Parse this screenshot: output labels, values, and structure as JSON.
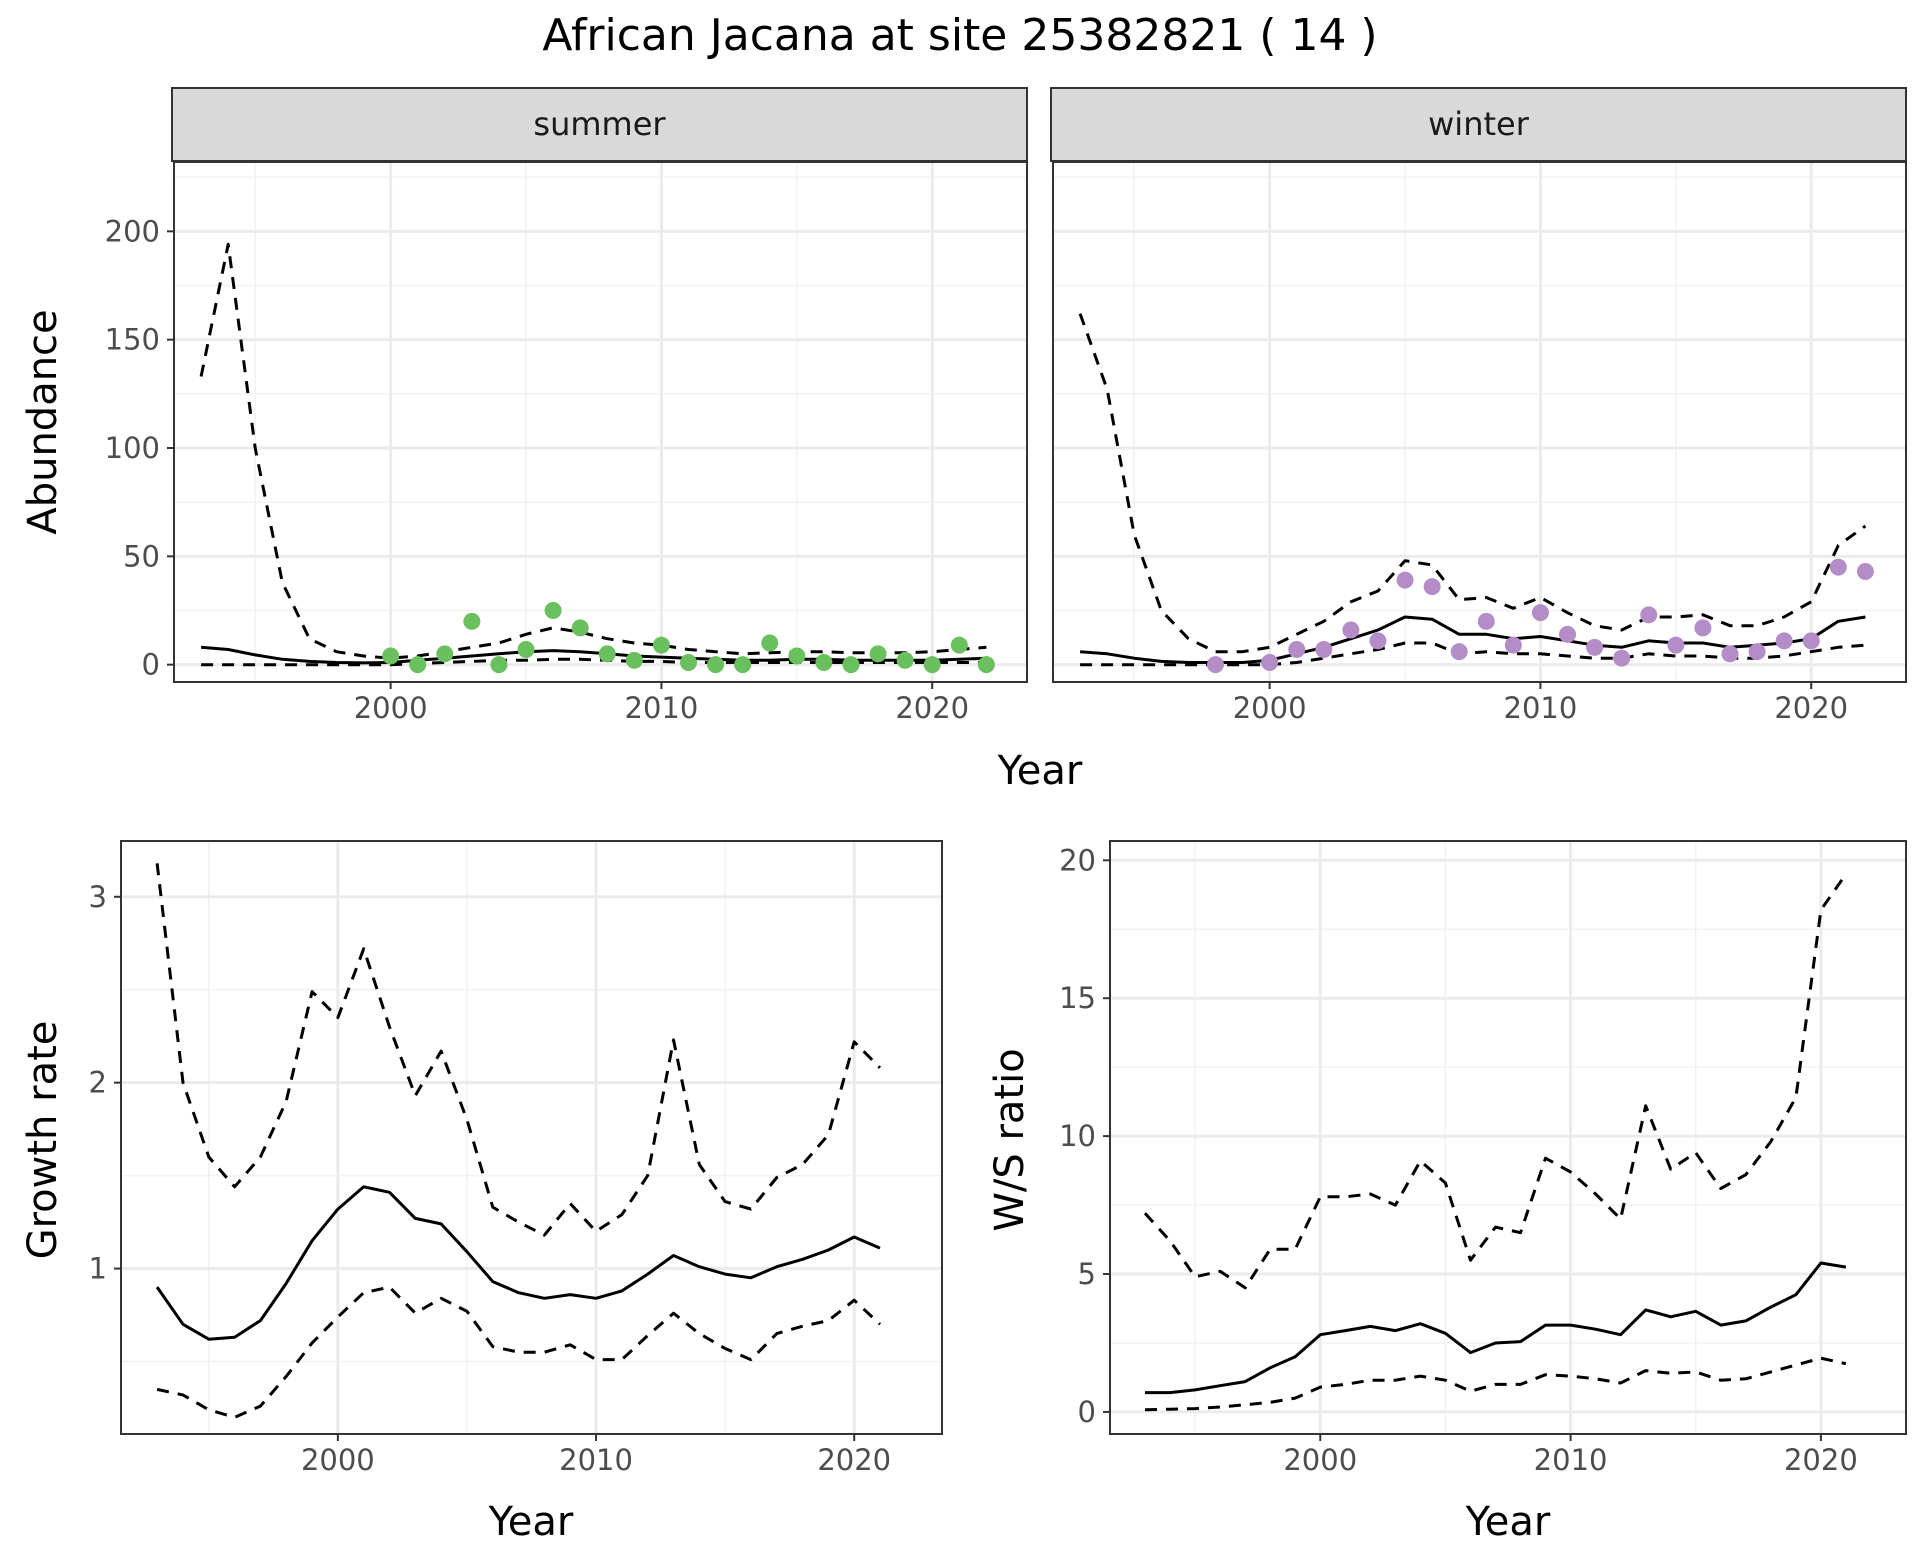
{
  "title": "African Jacana at site 25382821 ( 14 )",
  "chart_data": [
    {
      "type": "line",
      "panel": "summer",
      "xlabel": "Year",
      "ylabel": "Abundance",
      "xlim": [
        1992,
        2023.5
      ],
      "ylim": [
        -8,
        232
      ],
      "x_ticks": [
        2000,
        2010,
        2020
      ],
      "y_ticks": [
        0,
        50,
        100,
        150,
        200
      ],
      "grid": true,
      "point_color": "#6abf5e",
      "lines": {
        "x": [
          1993,
          1994,
          1995,
          1996,
          1997,
          1998,
          1999,
          2000,
          2001,
          2002,
          2003,
          2004,
          2005,
          2006,
          2007,
          2008,
          2009,
          2010,
          2011,
          2012,
          2013,
          2014,
          2015,
          2016,
          2017,
          2018,
          2019,
          2020,
          2021,
          2022
        ],
        "mean": [
          8,
          7,
          4.5,
          2.5,
          1.5,
          1,
          0.8,
          1,
          2,
          3,
          4,
          5,
          6,
          6.5,
          6,
          5,
          4,
          3.5,
          3,
          2.5,
          2,
          2,
          2.5,
          2.5,
          2,
          2,
          2,
          2,
          2.5,
          3
        ],
        "upper": [
          133,
          194,
          100,
          38,
          12,
          6,
          4,
          3,
          4,
          6,
          8,
          10,
          14,
          17,
          15,
          12,
          10,
          9,
          7,
          6,
          5,
          5.5,
          6,
          6,
          5.5,
          5.5,
          5.5,
          6,
          7,
          8
        ],
        "lower": [
          0,
          0,
          0,
          0,
          0,
          0,
          0,
          0,
          0.5,
          1,
          1.5,
          2,
          2,
          2.5,
          2.5,
          2,
          1.5,
          1.5,
          1,
          1,
          1,
          1,
          1,
          1,
          1,
          1,
          1,
          1,
          1,
          1
        ]
      },
      "points": {
        "x": [
          2000,
          2001,
          2002,
          2003,
          2004,
          2005,
          2006,
          2007,
          2008,
          2009,
          2010,
          2011,
          2012,
          2013,
          2014,
          2015,
          2016,
          2017,
          2018,
          2019,
          2020,
          2021,
          2022
        ],
        "y": [
          4,
          0,
          5,
          20,
          0,
          7,
          25,
          17,
          5,
          2,
          9,
          1,
          0,
          0,
          10,
          4,
          1,
          0,
          5,
          2,
          0,
          9,
          0
        ]
      }
    },
    {
      "type": "line",
      "panel": "winter",
      "xlabel": "Year",
      "ylabel": "Abundance",
      "xlim": [
        1992,
        2023.5
      ],
      "ylim": [
        -8,
        232
      ],
      "x_ticks": [
        2000,
        2010,
        2020
      ],
      "y_ticks": [
        0,
        50,
        100,
        150,
        200
      ],
      "grid": true,
      "point_color": "#b48cc8",
      "lines": {
        "x": [
          1993,
          1994,
          1995,
          1996,
          1997,
          1998,
          1999,
          2000,
          2001,
          2002,
          2003,
          2004,
          2005,
          2006,
          2007,
          2008,
          2009,
          2010,
          2011,
          2012,
          2013,
          2014,
          2015,
          2016,
          2017,
          2018,
          2019,
          2020,
          2021,
          2022
        ],
        "mean": [
          6,
          5,
          3,
          1.5,
          1,
          1,
          1,
          2,
          5,
          8,
          12,
          16,
          22,
          21,
          14,
          14,
          12,
          13,
          11,
          9,
          8,
          11,
          10,
          10,
          8,
          9,
          10,
          12,
          20,
          22
        ],
        "upper": [
          162,
          127,
          60,
          25,
          12,
          6,
          6,
          8,
          14,
          20,
          29,
          34,
          48,
          46,
          30,
          31,
          26,
          31,
          24,
          18,
          16,
          22,
          22,
          23,
          18,
          18,
          22,
          29,
          55,
          64
        ],
        "lower": [
          0,
          0,
          0,
          0,
          0,
          0,
          0,
          0,
          1,
          3,
          5,
          7,
          10,
          10,
          5,
          6,
          5,
          5,
          4,
          3,
          3,
          5,
          4,
          4,
          3,
          3,
          4,
          6,
          8,
          9
        ]
      },
      "points": {
        "x": [
          1998,
          2000,
          2001,
          2002,
          2003,
          2004,
          2005,
          2006,
          2007,
          2008,
          2009,
          2010,
          2011,
          2012,
          2013,
          2014,
          2015,
          2016,
          2017,
          2018,
          2019,
          2020,
          2021,
          2022
        ],
        "y": [
          0,
          1,
          7,
          7,
          16,
          11,
          39,
          36,
          6,
          20,
          9,
          24,
          14,
          8,
          3,
          23,
          9,
          17,
          5,
          6,
          11,
          11,
          45,
          43
        ]
      }
    },
    {
      "type": "line",
      "panel": "growth",
      "xlabel": "Year",
      "ylabel": "Growth rate",
      "xlim": [
        1991.6,
        2023.4
      ],
      "ylim": [
        0.11,
        3.3
      ],
      "x_ticks": [
        2000,
        2010,
        2020
      ],
      "y_ticks": [
        1,
        2,
        3
      ],
      "grid": true,
      "lines": {
        "x": [
          1993,
          1994,
          1995,
          1996,
          1997,
          1998,
          1999,
          2000,
          2001,
          2002,
          2003,
          2004,
          2005,
          2006,
          2007,
          2008,
          2009,
          2010,
          2011,
          2012,
          2013,
          2014,
          2015,
          2016,
          2017,
          2018,
          2019,
          2020,
          2021
        ],
        "mean": [
          0.9,
          0.7,
          0.62,
          0.63,
          0.72,
          0.92,
          1.15,
          1.32,
          1.44,
          1.41,
          1.27,
          1.24,
          1.09,
          0.93,
          0.87,
          0.84,
          0.86,
          0.84,
          0.88,
          0.97,
          1.07,
          1.01,
          0.97,
          0.95,
          1.01,
          1.05,
          1.1,
          1.17,
          1.11
        ],
        "upper": [
          3.18,
          2.0,
          1.6,
          1.44,
          1.6,
          1.9,
          2.49,
          2.35,
          2.72,
          2.3,
          1.93,
          2.17,
          1.8,
          1.33,
          1.25,
          1.18,
          1.35,
          1.2,
          1.29,
          1.5,
          2.23,
          1.56,
          1.36,
          1.32,
          1.49,
          1.56,
          1.72,
          2.22,
          2.08
        ],
        "lower": [
          0.35,
          0.32,
          0.24,
          0.2,
          0.26,
          0.42,
          0.6,
          0.74,
          0.87,
          0.9,
          0.76,
          0.84,
          0.77,
          0.58,
          0.55,
          0.55,
          0.59,
          0.51,
          0.51,
          0.64,
          0.76,
          0.65,
          0.57,
          0.51,
          0.65,
          0.69,
          0.72,
          0.83,
          0.7
        ]
      }
    },
    {
      "type": "line",
      "panel": "ratio",
      "xlabel": "Year",
      "ylabel": "W/S ratio",
      "xlim": [
        1991.6,
        2023.4
      ],
      "ylim": [
        -0.8,
        20.7
      ],
      "x_ticks": [
        2000,
        2010,
        2020
      ],
      "y_ticks": [
        0,
        5,
        10,
        15,
        20
      ],
      "grid": true,
      "lines": {
        "x": [
          1993,
          1994,
          1995,
          1996,
          1997,
          1998,
          1999,
          2000,
          2001,
          2002,
          2003,
          2004,
          2005,
          2006,
          2007,
          2008,
          2009,
          2010,
          2011,
          2012,
          2013,
          2014,
          2015,
          2016,
          2017,
          2018,
          2019,
          2020,
          2021
        ],
        "mean": [
          0.7,
          0.7,
          0.8,
          0.95,
          1.1,
          1.6,
          2.0,
          2.8,
          2.95,
          3.1,
          2.95,
          3.2,
          2.85,
          2.15,
          2.5,
          2.55,
          3.15,
          3.15,
          3.0,
          2.8,
          3.7,
          3.45,
          3.65,
          3.15,
          3.3,
          3.8,
          4.25,
          5.4,
          5.25
        ],
        "upper": [
          7.2,
          6.2,
          4.9,
          5.1,
          4.5,
          5.9,
          5.9,
          7.8,
          7.8,
          7.9,
          7.5,
          9.1,
          8.3,
          5.5,
          6.7,
          6.5,
          9.2,
          8.7,
          7.9,
          7.0,
          11.1,
          8.8,
          9.4,
          8.1,
          8.6,
          9.8,
          11.4,
          18.2,
          19.5
        ],
        "lower": [
          0.08,
          0.1,
          0.12,
          0.18,
          0.26,
          0.35,
          0.5,
          0.9,
          1.0,
          1.15,
          1.15,
          1.3,
          1.15,
          0.75,
          1.0,
          1.0,
          1.35,
          1.3,
          1.2,
          1.05,
          1.5,
          1.4,
          1.45,
          1.15,
          1.2,
          1.45,
          1.7,
          1.95,
          1.75
        ]
      }
    }
  ]
}
